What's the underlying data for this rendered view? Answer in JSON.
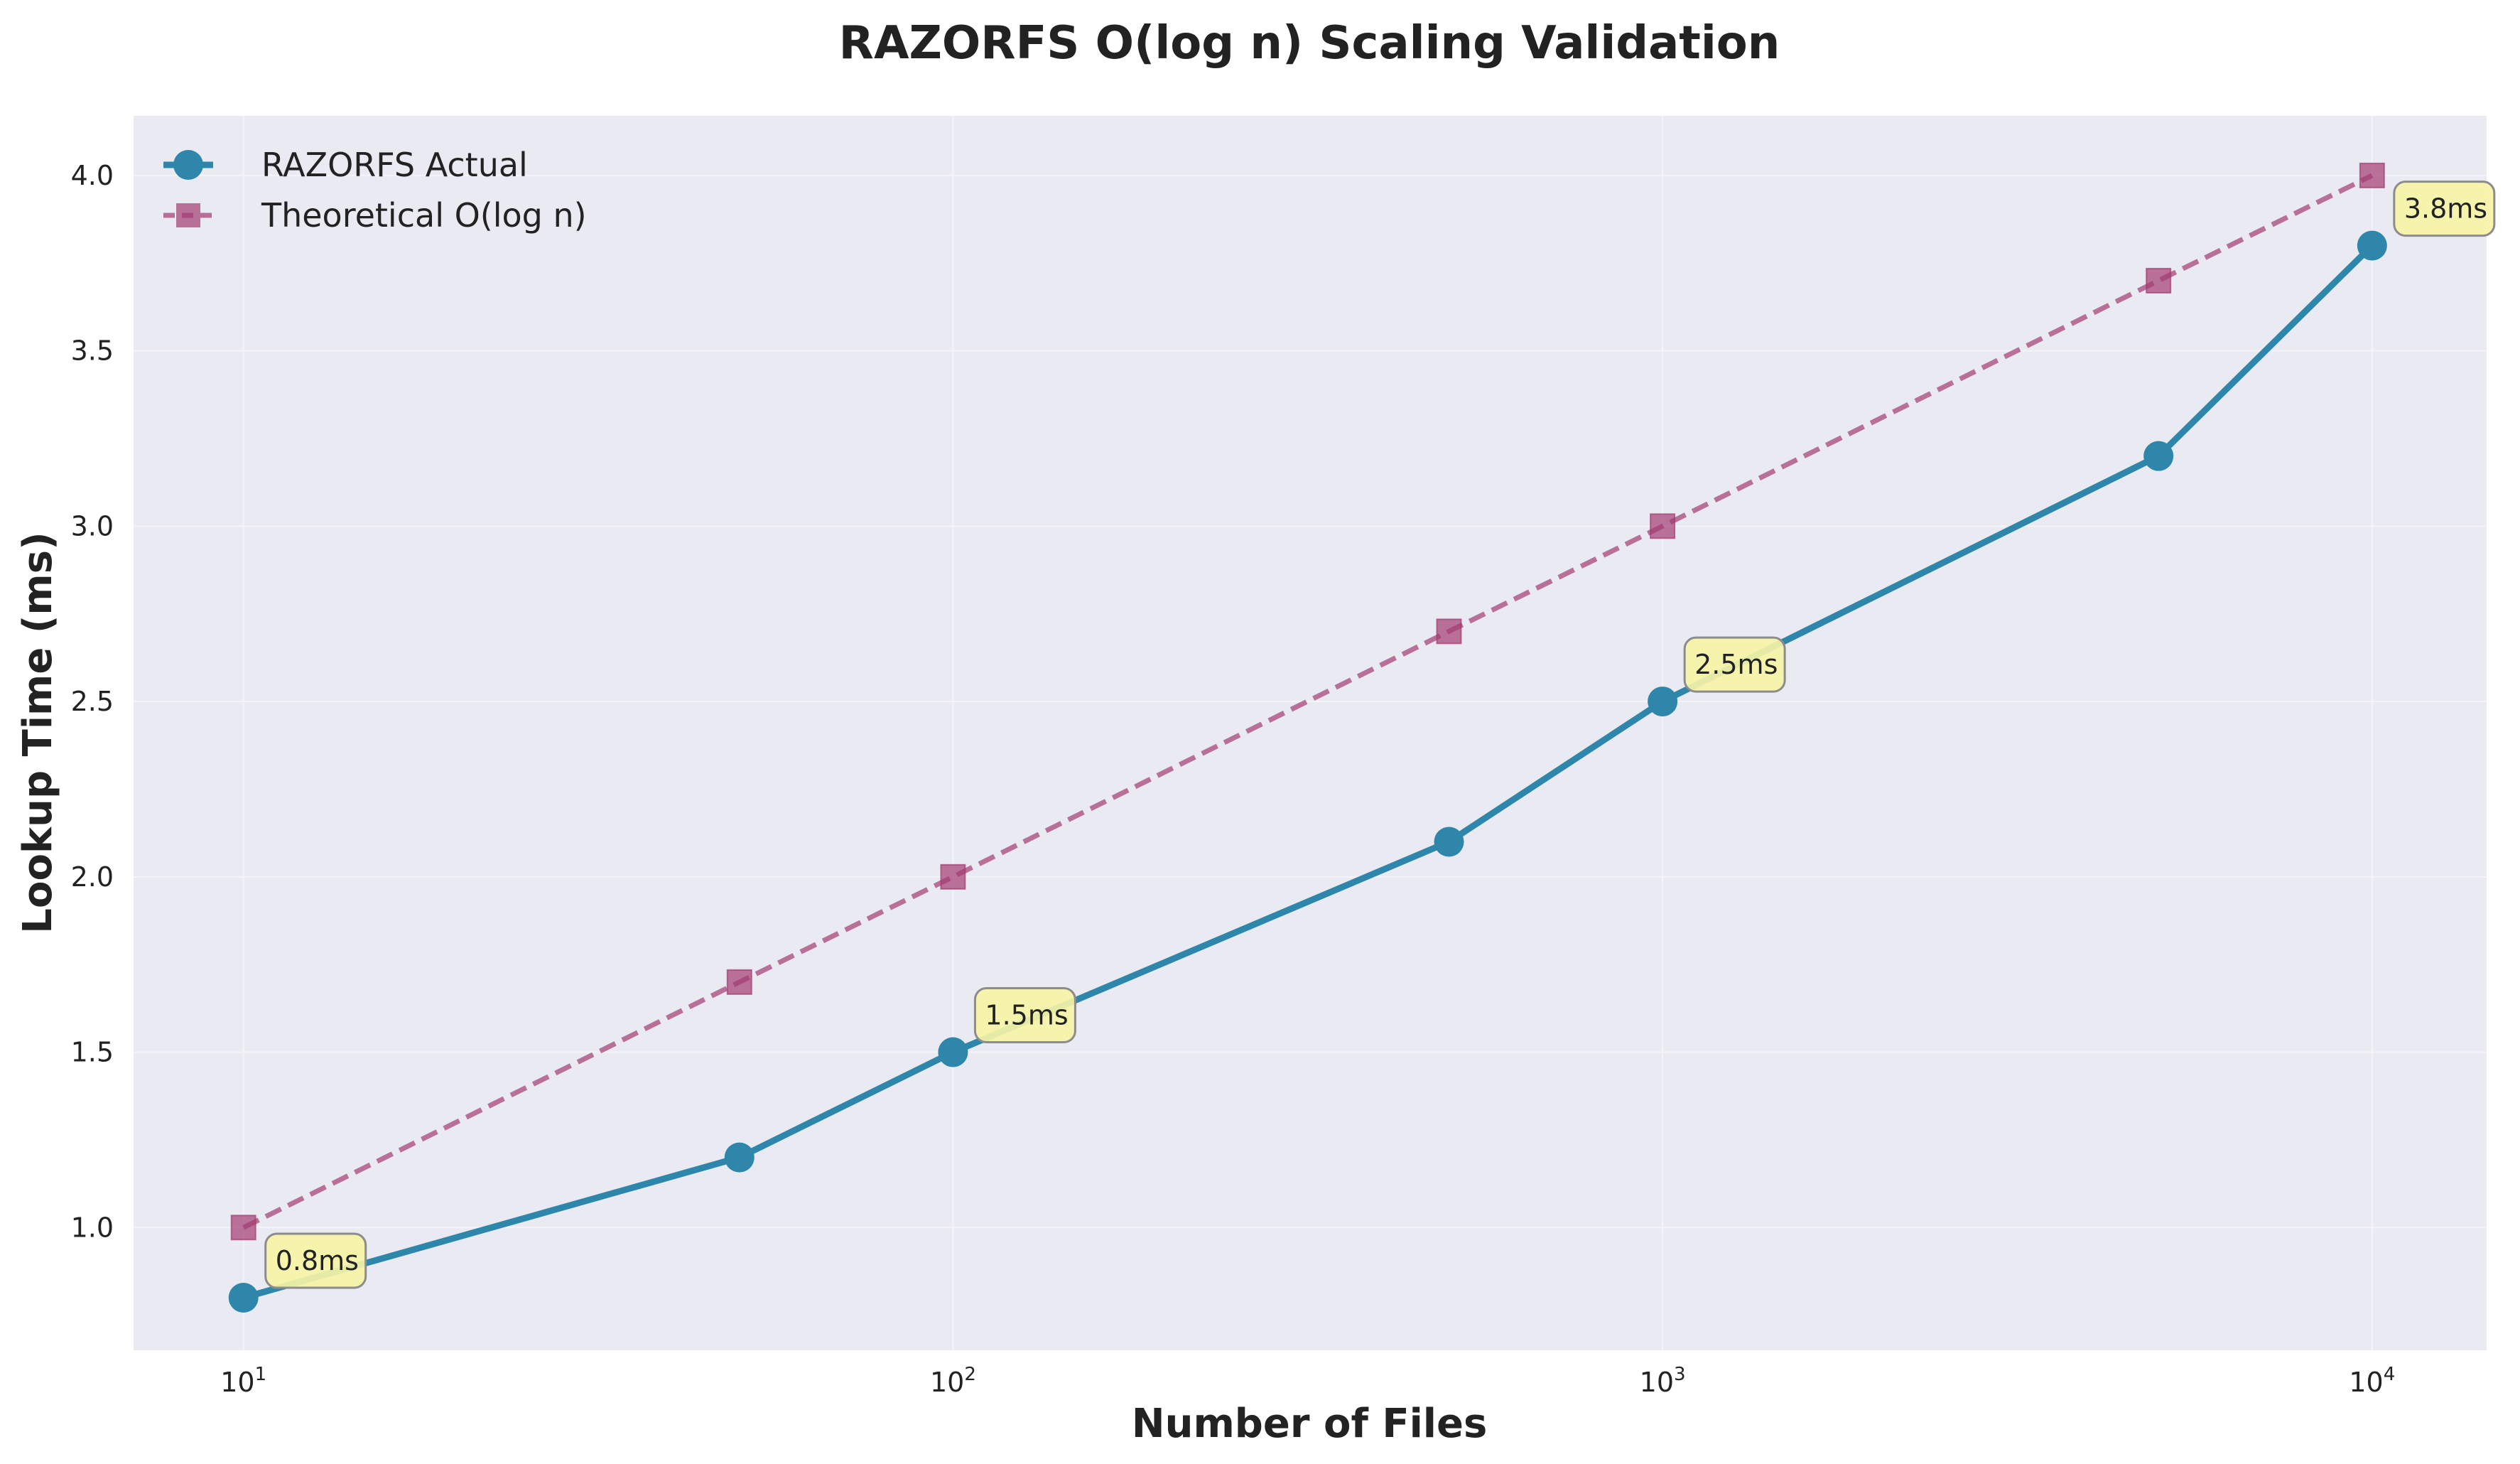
{
  "chart_data": {
    "type": "line",
    "title": "RAZORFS O(log n) Scaling Validation",
    "xlabel": "Number of Files",
    "ylabel": "Lookup Time (ms)",
    "x_scale": "log",
    "xlim": [
      7,
      14500
    ],
    "ylim": [
      0.65,
      4.17
    ],
    "x_ticks": [
      {
        "base": "10",
        "exp": "1"
      },
      {
        "base": "10",
        "exp": "2"
      },
      {
        "base": "10",
        "exp": "3"
      },
      {
        "base": "10",
        "exp": "4"
      }
    ],
    "y_ticks": [
      "1.0",
      "1.5",
      "2.0",
      "2.5",
      "3.0",
      "3.5",
      "4.0"
    ],
    "grid": true,
    "legend_position": "top-left",
    "series": [
      {
        "name": "RAZORFS Actual",
        "color": "#2e86ab",
        "style": "solid",
        "marker": "circle",
        "x": [
          10,
          50,
          100,
          500,
          1000,
          5000,
          10000
        ],
        "values": [
          0.8,
          1.2,
          1.5,
          2.1,
          2.5,
          3.2,
          3.8
        ]
      },
      {
        "name": "Theoretical O(log n)",
        "color": "#a23b72",
        "style": "dashed",
        "marker": "square",
        "x": [
          10,
          50,
          100,
          500,
          1000,
          5000,
          10000
        ],
        "values": [
          1.0,
          1.7,
          2.0,
          2.7,
          3.0,
          3.7,
          4.0
        ]
      }
    ],
    "annotations": [
      {
        "text": "0.8ms",
        "x": 10,
        "y": 0.8
      },
      {
        "text": "1.5ms",
        "x": 100,
        "y": 1.5
      },
      {
        "text": "2.5ms",
        "x": 1000,
        "y": 2.5
      },
      {
        "text": "3.8ms",
        "x": 10000,
        "y": 3.8
      }
    ]
  },
  "colors": {
    "plot_background": "#eaeaf2",
    "grid": "#f4f4f8",
    "annotation_fill": "#f5f3a6",
    "annotation_stroke": "#8c8c8c"
  }
}
